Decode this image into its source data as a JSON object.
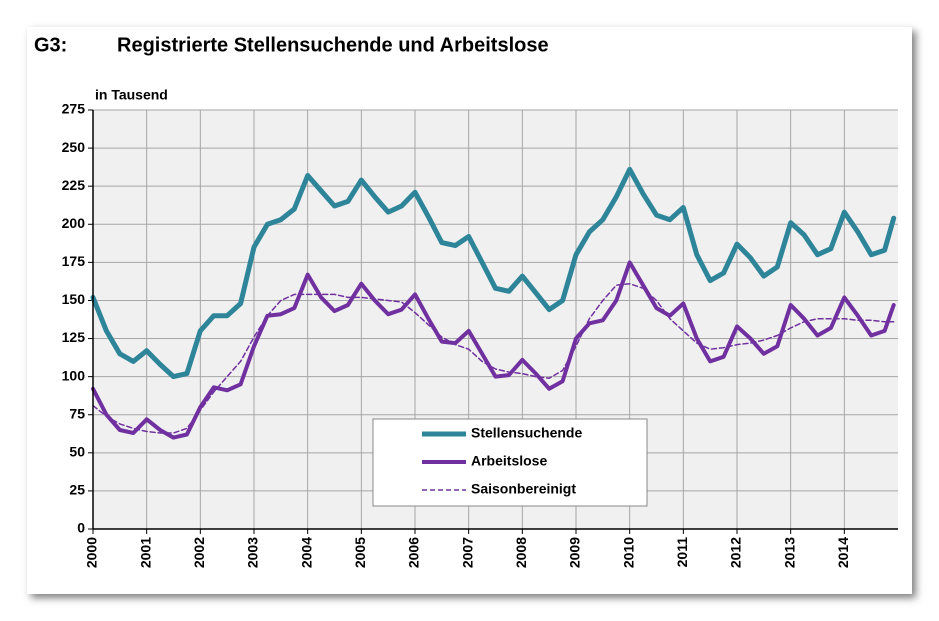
{
  "chart_data": {
    "type": "line",
    "title_label": "G3:",
    "title": "Registrierte Stellensuchende und Arbeitslose",
    "y_label": "in Tausend",
    "x": [
      2000,
      2000.25,
      2000.5,
      2000.75,
      2001,
      2001.25,
      2001.5,
      2001.75,
      2002,
      2002.25,
      2002.5,
      2002.75,
      2003,
      2003.25,
      2003.5,
      2003.75,
      2004,
      2004.25,
      2004.5,
      2004.75,
      2005,
      2005.25,
      2005.5,
      2005.75,
      2006,
      2006.25,
      2006.5,
      2006.75,
      2007,
      2007.25,
      2007.5,
      2007.75,
      2008,
      2008.25,
      2008.5,
      2008.75,
      2009,
      2009.25,
      2009.5,
      2009.75,
      2010,
      2010.25,
      2010.5,
      2010.75,
      2011,
      2011.25,
      2011.5,
      2011.75,
      2012,
      2012.25,
      2012.5,
      2012.75,
      2013,
      2013.25,
      2013.5,
      2013.75,
      2014,
      2014.25,
      2014.5,
      2014.75,
      2014.92
    ],
    "series": [
      {
        "name": "Stellensuchende",
        "color": "#2e8599",
        "style": "solid",
        "width": 5,
        "values": [
          152,
          130,
          115,
          110,
          117,
          108,
          100,
          102,
          130,
          140,
          140,
          148,
          185,
          200,
          203,
          210,
          232,
          222,
          212,
          215,
          229,
          218,
          208,
          212,
          221,
          205,
          188,
          186,
          192,
          175,
          158,
          156,
          166,
          155,
          144,
          150,
          180,
          195,
          203,
          218,
          236,
          220,
          206,
          203,
          211,
          180,
          163,
          168,
          187,
          178,
          166,
          172,
          201,
          193,
          180,
          184,
          208,
          195,
          180,
          183,
          204
        ]
      },
      {
        "name": "Arbeitslose",
        "color": "#7030a0",
        "style": "solid",
        "width": 4,
        "values": [
          92,
          75,
          65,
          63,
          72,
          65,
          60,
          62,
          80,
          93,
          91,
          95,
          120,
          140,
          141,
          145,
          167,
          152,
          143,
          147,
          161,
          150,
          141,
          144,
          154,
          138,
          123,
          122,
          130,
          115,
          100,
          101,
          111,
          102,
          92,
          97,
          125,
          135,
          137,
          150,
          175,
          160,
          145,
          140,
          148,
          125,
          110,
          113,
          133,
          125,
          115,
          120,
          147,
          138,
          127,
          132,
          152,
          140,
          127,
          130,
          147
        ]
      },
      {
        "name": "Saisonbereinigt",
        "color": "#7030a0",
        "style": "dashed",
        "width": 1.5,
        "values": [
          81,
          74,
          69,
          66,
          64,
          63,
          63,
          66,
          78,
          90,
          100,
          110,
          126,
          140,
          150,
          154,
          154,
          154,
          154,
          152,
          152,
          151,
          150,
          149,
          142,
          134,
          126,
          121,
          118,
          110,
          105,
          103,
          102,
          100,
          99,
          104,
          120,
          138,
          150,
          160,
          161,
          158,
          150,
          138,
          130,
          122,
          118,
          119,
          121,
          122,
          124,
          127,
          132,
          136,
          138,
          138,
          138,
          137,
          137,
          136,
          136
        ]
      }
    ],
    "xlim": [
      2000,
      2015
    ],
    "xticks": [
      2000,
      2001,
      2002,
      2003,
      2004,
      2005,
      2006,
      2007,
      2008,
      2009,
      2010,
      2011,
      2012,
      2013,
      2014
    ],
    "ylim": [
      0,
      275
    ],
    "yticks": [
      0,
      25,
      50,
      75,
      100,
      125,
      150,
      175,
      200,
      225,
      250,
      275
    ],
    "grid": true
  }
}
